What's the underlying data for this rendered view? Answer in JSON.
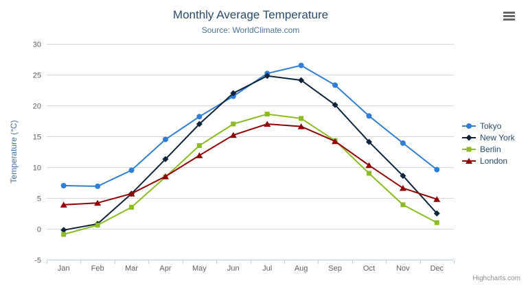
{
  "header": {
    "title": "Monthly Average Temperature",
    "subtitle": "Source: WorldClimate.com"
  },
  "credits": "Highcharts.com",
  "colors": {
    "title": "#274b6d",
    "subtitle": "#4d759e",
    "axis_title": "#4572a7",
    "tick_label": "#606060",
    "grid": "#d8d8d8",
    "axis_line": "#c0d0e0",
    "legend_text": "#274b6d",
    "menu_icon": "#666666",
    "credits_text": "#909090"
  },
  "chart_data": {
    "type": "line",
    "title": "Monthly Average Temperature",
    "subtitle": "Source: WorldClimate.com",
    "xlabel": "",
    "ylabel": "Temperature (°C)",
    "categories": [
      "Jan",
      "Feb",
      "Mar",
      "Apr",
      "May",
      "Jun",
      "Jul",
      "Aug",
      "Sep",
      "Oct",
      "Nov",
      "Dec"
    ],
    "ylim": [
      -5,
      30
    ],
    "ytick_step": 5,
    "grid": true,
    "legend_position": "right",
    "series": [
      {
        "name": "Tokyo",
        "color": "#2f7ed8",
        "marker": "circle",
        "values": [
          7.0,
          6.9,
          9.5,
          14.5,
          18.2,
          21.5,
          25.2,
          26.5,
          23.3,
          18.3,
          13.9,
          9.6
        ]
      },
      {
        "name": "New York",
        "color": "#0d233a",
        "marker": "diamond",
        "values": [
          -0.2,
          0.8,
          5.7,
          11.3,
          17.0,
          22.0,
          24.8,
          24.1,
          20.1,
          14.1,
          8.6,
          2.5
        ]
      },
      {
        "name": "Berlin",
        "color": "#8bbc21",
        "marker": "square",
        "values": [
          -0.9,
          0.6,
          3.5,
          8.4,
          13.5,
          17.0,
          18.6,
          17.9,
          14.3,
          9.0,
          3.9,
          1.0
        ]
      },
      {
        "name": "London",
        "color": "#910000",
        "marker": "triangle",
        "values": [
          3.9,
          4.2,
          5.7,
          8.5,
          11.9,
          15.2,
          17.0,
          16.6,
          14.2,
          10.3,
          6.6,
          4.8
        ]
      }
    ]
  }
}
